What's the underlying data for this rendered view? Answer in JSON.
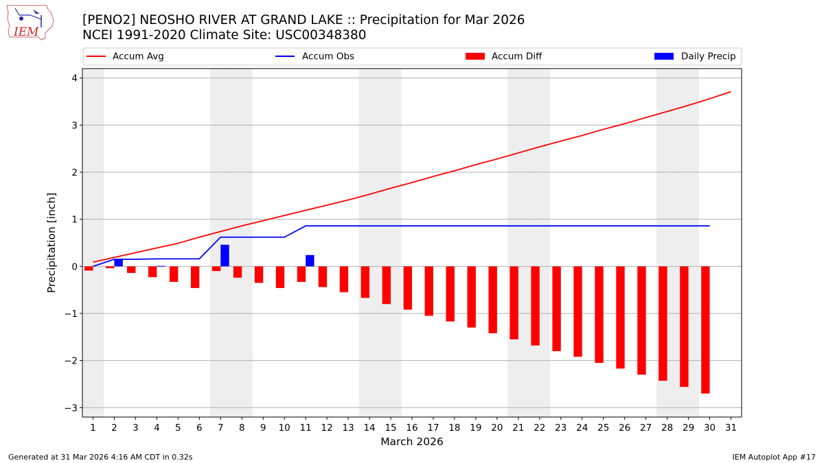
{
  "header": {
    "title_line1": "[PENO2] NEOSHO RIVER  AT GRAND LAKE :: Precipitation for Mar 2026",
    "title_line2": "NCEI 1991-2020 Climate Site: USC00348380"
  },
  "logo": {
    "text": "IEM"
  },
  "footer": {
    "left": "Generated at 31 Mar 2026 4:16 AM CDT in 0.32s",
    "right": "IEM Autoplot App #17"
  },
  "colors": {
    "accum_avg": "#ff0000",
    "accum_obs": "#0000ff",
    "accum_diff": "#ff0000",
    "daily_precip": "#0000ff",
    "weekend_shade": "#eeeeee",
    "grid": "#b0b0b0"
  },
  "chart_data": {
    "type": "bar",
    "xlabel": "March 2026",
    "ylabel": "Precipitation [inch]",
    "xlim": [
      0.5,
      31.5
    ],
    "ylim": [
      -3.2,
      4.2
    ],
    "yticks": [
      4,
      3,
      2,
      1,
      0,
      -1,
      -2,
      -3
    ],
    "ytick_labels": [
      "4",
      "3",
      "2",
      "1",
      "0",
      "−1",
      "−2",
      "−3"
    ],
    "days": [
      1,
      2,
      3,
      4,
      5,
      6,
      7,
      8,
      9,
      10,
      11,
      12,
      13,
      14,
      15,
      16,
      17,
      18,
      19,
      20,
      21,
      22,
      23,
      24,
      25,
      26,
      27,
      28,
      29,
      30,
      31
    ],
    "shaded_days": [
      1,
      7,
      8,
      14,
      15,
      21,
      22,
      28,
      29
    ],
    "grid": true,
    "legend_position": "top",
    "series": [
      {
        "name": "Accum Avg",
        "kind": "line",
        "days": [
          1,
          2,
          3,
          4,
          5,
          6,
          7,
          8,
          9,
          10,
          11,
          12,
          13,
          14,
          15,
          16,
          17,
          18,
          19,
          20,
          21,
          22,
          23,
          24,
          25,
          26,
          27,
          28,
          29,
          30,
          31
        ],
        "values": [
          0.09,
          0.19,
          0.29,
          0.39,
          0.49,
          0.62,
          0.74,
          0.86,
          0.97,
          1.08,
          1.19,
          1.3,
          1.41,
          1.53,
          1.66,
          1.78,
          1.91,
          2.03,
          2.16,
          2.28,
          2.41,
          2.54,
          2.66,
          2.78,
          2.91,
          3.03,
          3.16,
          3.29,
          3.42,
          3.56,
          3.71
        ]
      },
      {
        "name": "Accum Obs",
        "kind": "line",
        "days": [
          1,
          2,
          3,
          4,
          5,
          6,
          7,
          8,
          9,
          10,
          11,
          12,
          13,
          14,
          15,
          16,
          17,
          18,
          19,
          20,
          21,
          22,
          23,
          24,
          25,
          26,
          27,
          28,
          29,
          30
        ],
        "values": [
          0.0,
          0.15,
          0.15,
          0.16,
          0.16,
          0.16,
          0.62,
          0.62,
          0.62,
          0.62,
          0.86,
          0.86,
          0.86,
          0.86,
          0.86,
          0.86,
          0.86,
          0.86,
          0.86,
          0.86,
          0.86,
          0.86,
          0.86,
          0.86,
          0.86,
          0.86,
          0.86,
          0.86,
          0.86,
          0.86
        ]
      },
      {
        "name": "Accum Diff",
        "kind": "bar",
        "days": [
          1,
          2,
          3,
          4,
          5,
          6,
          7,
          8,
          9,
          10,
          11,
          12,
          13,
          14,
          15,
          16,
          17,
          18,
          19,
          20,
          21,
          22,
          23,
          24,
          25,
          26,
          27,
          28,
          29,
          30
        ],
        "values": [
          -0.09,
          -0.04,
          -0.14,
          -0.23,
          -0.33,
          -0.46,
          -0.1,
          -0.24,
          -0.35,
          -0.46,
          -0.33,
          -0.44,
          -0.55,
          -0.67,
          -0.8,
          -0.92,
          -1.05,
          -1.17,
          -1.3,
          -1.42,
          -1.55,
          -1.68,
          -1.8,
          -1.92,
          -2.05,
          -2.17,
          -2.3,
          -2.43,
          -2.56,
          -2.7
        ]
      },
      {
        "name": "Daily Precip",
        "kind": "bar",
        "days": [
          1,
          2,
          3,
          4,
          5,
          6,
          7,
          8,
          9,
          10,
          11,
          12,
          13,
          14,
          15,
          16,
          17,
          18,
          19,
          20,
          21,
          22,
          23,
          24,
          25,
          26,
          27,
          28,
          29,
          30
        ],
        "values": [
          0,
          0.15,
          0,
          0.01,
          0,
          0,
          0.46,
          0,
          0,
          0,
          0.24,
          0,
          0,
          0,
          0,
          0,
          0,
          0,
          0,
          0,
          0,
          0,
          0,
          0,
          0,
          0,
          0,
          0,
          0,
          0
        ]
      }
    ]
  }
}
